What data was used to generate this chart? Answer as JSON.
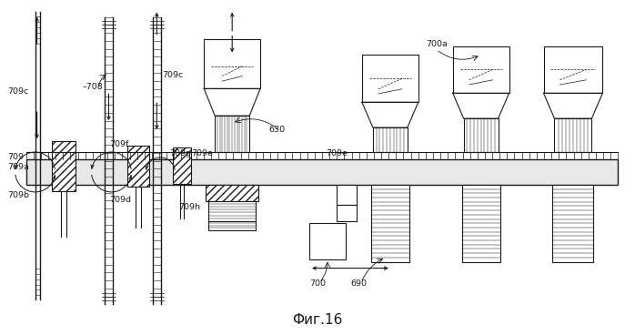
{
  "bg_color": "#ffffff",
  "line_color": "#1a1a1a",
  "title": "Фиг.16",
  "title_fontsize": 11,
  "figsize": [
    6.98,
    3.68
  ],
  "dpi": 100,
  "xlim": [
    0,
    698
  ],
  "ylim": [
    0,
    368
  ]
}
